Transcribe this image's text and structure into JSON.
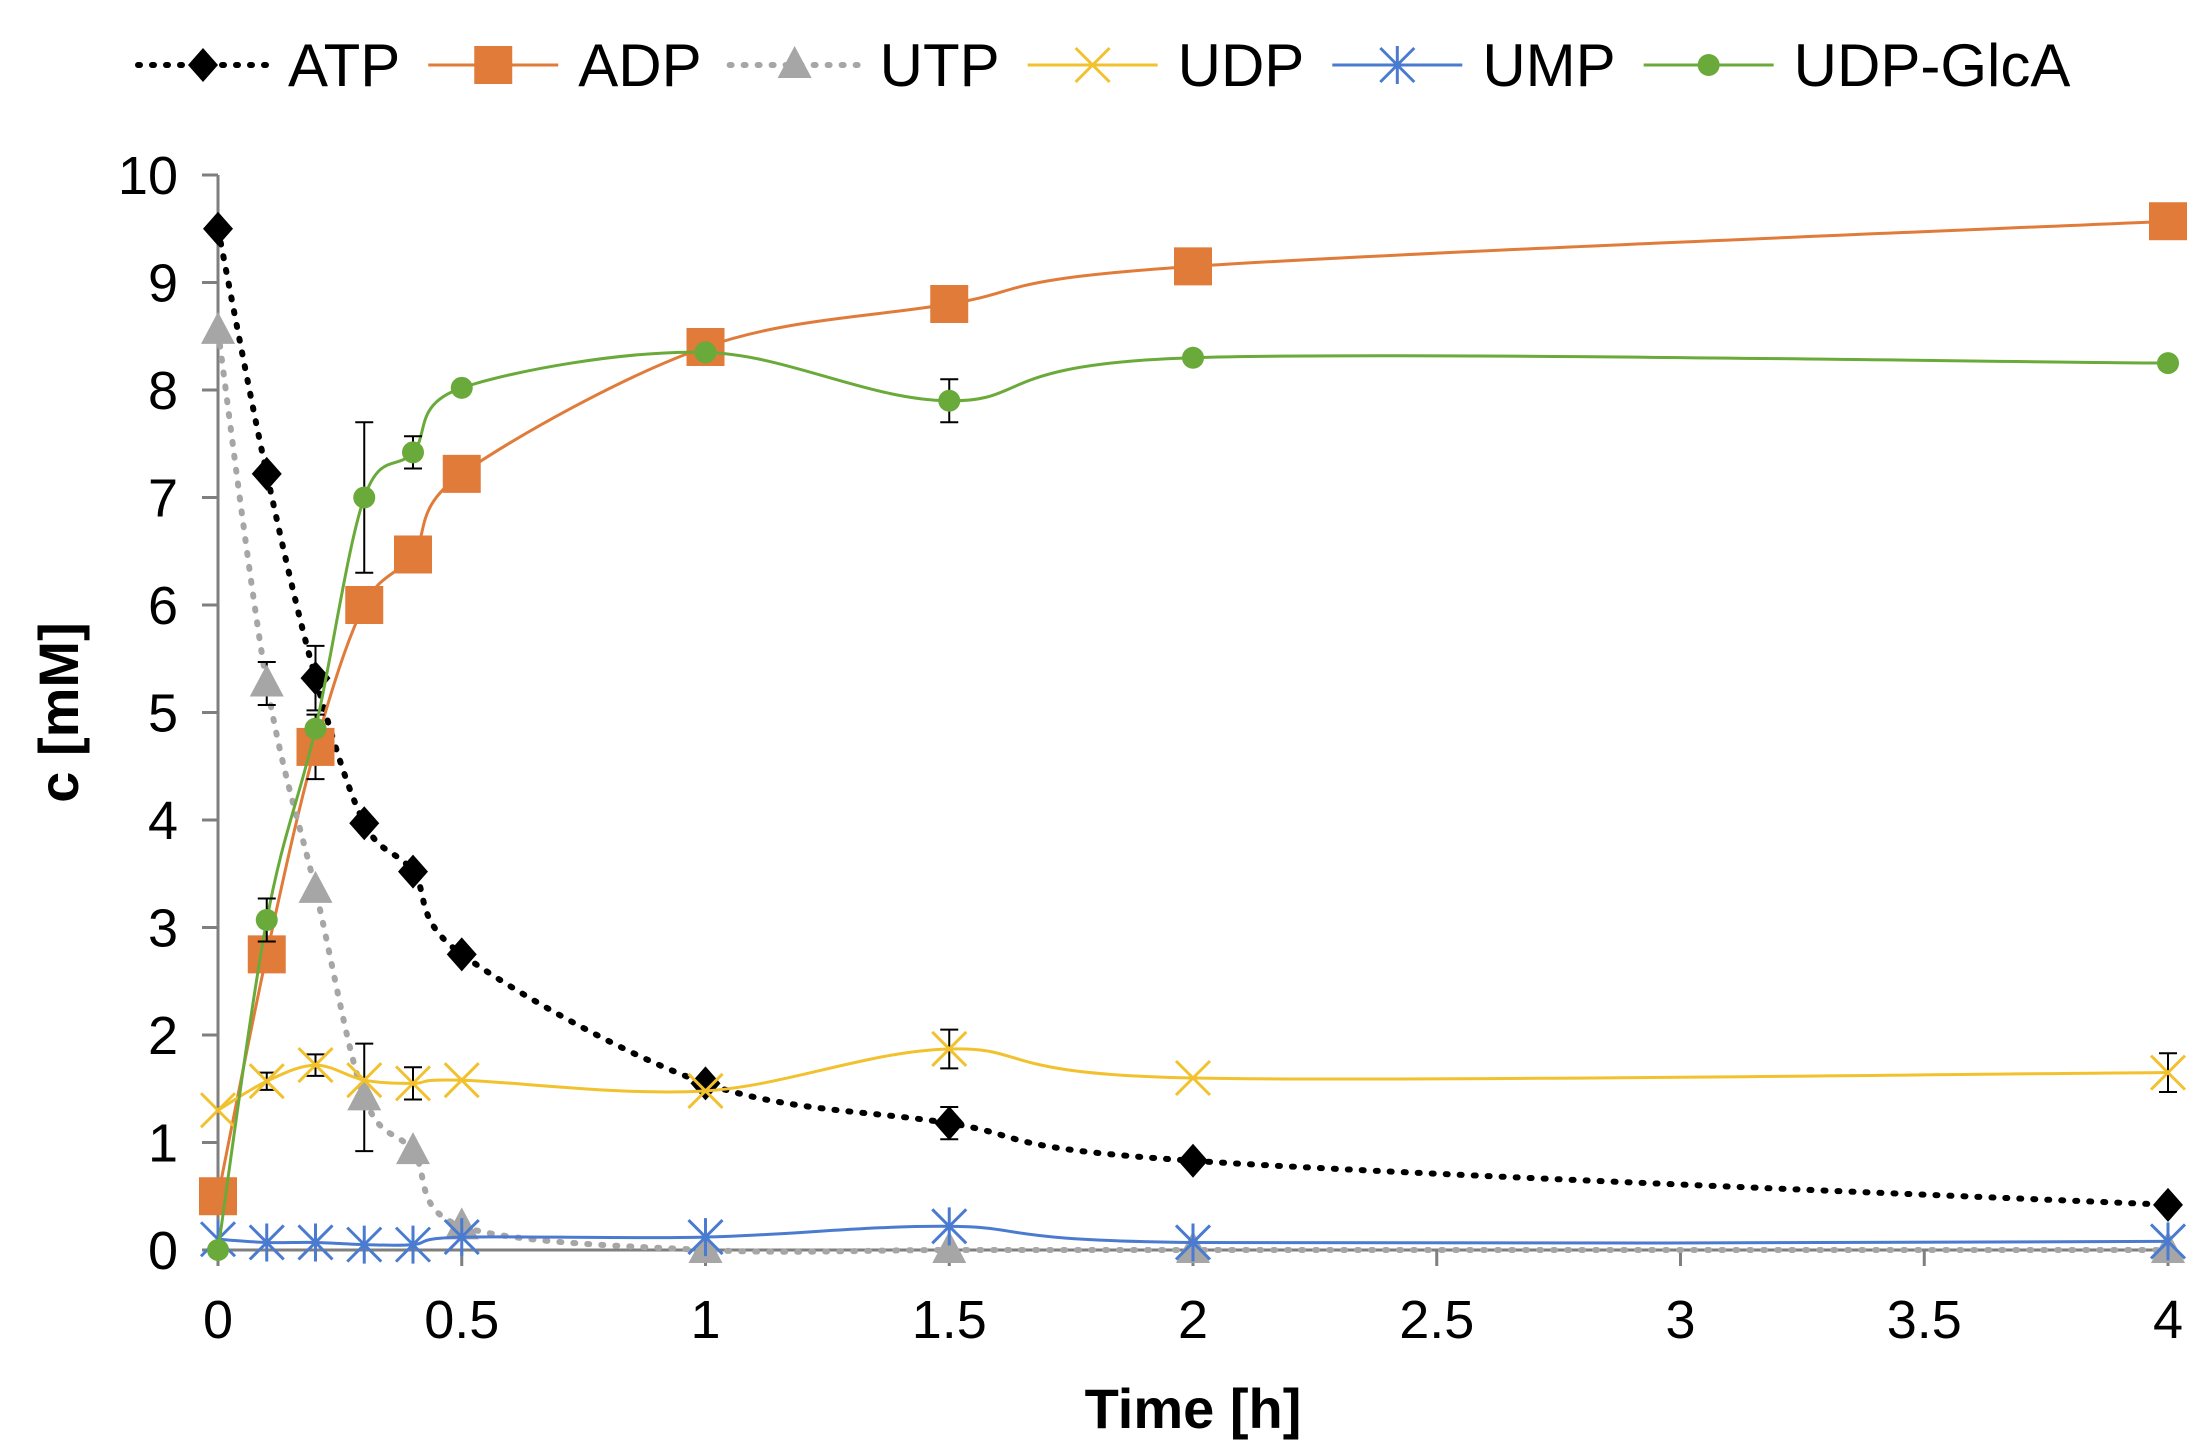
{
  "chart_data": {
    "type": "line",
    "title": "",
    "xlabel": "Time [h]",
    "ylabel": "c [mM]",
    "xlim": [
      0,
      4
    ],
    "ylim": [
      0,
      10
    ],
    "x_ticks": [
      "0",
      "0.5",
      "1",
      "1.5",
      "2",
      "2.5",
      "3",
      "3.5",
      "4"
    ],
    "y_ticks": [
      "0",
      "1",
      "2",
      "3",
      "4",
      "5",
      "6",
      "7",
      "8",
      "9",
      "10"
    ],
    "x_tick_values": [
      0,
      0.5,
      1,
      1.5,
      2,
      2.5,
      3,
      3.5,
      4
    ],
    "y_tick_values": [
      0,
      1,
      2,
      3,
      4,
      5,
      6,
      7,
      8,
      9,
      10
    ],
    "legend_position": "top",
    "series": [
      {
        "name": "ATP",
        "color": "#000000",
        "line_style": "dotted",
        "marker": "diamond",
        "x": [
          0,
          0.1,
          0.2,
          0.3,
          0.4,
          0.5,
          1,
          1.5,
          2,
          4
        ],
        "y": [
          9.5,
          7.22,
          5.32,
          3.97,
          3.52,
          2.75,
          1.55,
          1.18,
          0.83,
          0.42
        ],
        "err": [
          0,
          0,
          0.3,
          0,
          0,
          0,
          0,
          0.15,
          0,
          0
        ]
      },
      {
        "name": "ADP",
        "color": "#e07b39",
        "line_style": "solid",
        "marker": "square",
        "x": [
          0,
          0.1,
          0.2,
          0.3,
          0.4,
          0.5,
          1,
          1.5,
          2,
          4
        ],
        "y": [
          0.5,
          2.75,
          4.68,
          6.0,
          6.47,
          7.22,
          8.4,
          8.8,
          9.15,
          9.57
        ],
        "err": [
          0,
          0,
          0.3,
          0,
          0,
          0,
          0,
          0,
          0,
          0
        ]
      },
      {
        "name": "UTP",
        "color": "#a6a6a6",
        "line_style": "dotted",
        "marker": "triangle",
        "x": [
          0,
          0.1,
          0.2,
          0.3,
          0.4,
          0.5,
          1,
          1.5,
          2,
          4
        ],
        "y": [
          8.55,
          5.27,
          3.35,
          1.42,
          0.92,
          0.22,
          0.0,
          0.0,
          0.0,
          0.0
        ],
        "err": [
          0,
          0.2,
          0,
          0.5,
          0,
          0,
          0,
          0,
          0,
          0
        ]
      },
      {
        "name": "UDP",
        "color": "#f2c12e",
        "line_style": "solid",
        "marker": "x",
        "x": [
          0,
          0.1,
          0.2,
          0.3,
          0.4,
          0.5,
          1,
          1.5,
          2,
          4
        ],
        "y": [
          1.3,
          1.57,
          1.72,
          1.58,
          1.55,
          1.58,
          1.48,
          1.87,
          1.6,
          1.65
        ],
        "err": [
          0,
          0.08,
          0.1,
          0,
          0.15,
          0,
          0,
          0.18,
          0,
          0.18
        ]
      },
      {
        "name": "UMP",
        "color": "#4a7bd0",
        "line_style": "solid",
        "marker": "asterisk",
        "x": [
          0,
          0.1,
          0.2,
          0.3,
          0.4,
          0.5,
          1,
          1.5,
          2,
          4
        ],
        "y": [
          0.1,
          0.07,
          0.07,
          0.05,
          0.05,
          0.12,
          0.12,
          0.22,
          0.07,
          0.08
        ],
        "err": [
          0,
          0,
          0,
          0,
          0,
          0,
          0,
          0,
          0,
          0
        ]
      },
      {
        "name": "UDP-GlcA",
        "color": "#6aaa3a",
        "line_style": "solid",
        "marker": "circle",
        "x": [
          0,
          0.1,
          0.2,
          0.3,
          0.4,
          0.5,
          1,
          1.5,
          2,
          4
        ],
        "y": [
          0.0,
          3.07,
          4.85,
          7.0,
          7.42,
          8.02,
          8.35,
          7.9,
          8.3,
          8.25
        ],
        "err": [
          0,
          0.2,
          0,
          0.7,
          0.15,
          0,
          0,
          0.2,
          0,
          0
        ]
      }
    ]
  }
}
